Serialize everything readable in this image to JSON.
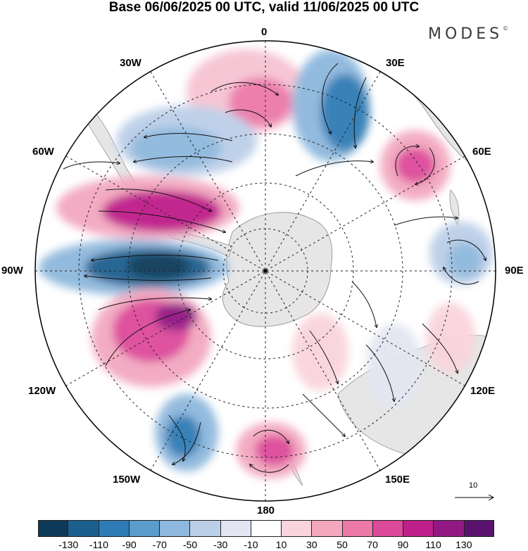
{
  "title": "Base 06/06/2025 00 UTC, valid 11/06/2025 00 UTC",
  "brand": "MODES",
  "brand_mark": "©",
  "longitude_labels": {
    "lon_0": "0",
    "lon_30e": "30E",
    "lon_60e": "60E",
    "lon_90e": "90E",
    "lon_120e": "120E",
    "lon_150e": "150E",
    "lon_180": "180",
    "lon_150w": "150W",
    "lon_120w": "120W",
    "lon_90w": "90W",
    "lon_60w": "60W",
    "lon_30w": "30W"
  },
  "reference_vector": {
    "label": "10"
  },
  "colorbar": {
    "colors": [
      "#0d3a58",
      "#1a5f8e",
      "#2f7bb5",
      "#5b9ccd",
      "#8eb8dd",
      "#bccfe8",
      "#e3e6f2",
      "#ffffff",
      "#f9d4dc",
      "#f3a8c0",
      "#ec79a8",
      "#dd4a9a",
      "#bf1f8b",
      "#921983",
      "#5a126f"
    ],
    "ticks": [
      "-130",
      "-110",
      "-90",
      "-70",
      "-50",
      "-30",
      "-10",
      "10",
      "30",
      "50",
      "70",
      "90",
      "110",
      "130"
    ]
  },
  "map": {
    "projection": "south polar stereographic",
    "field": "geopotential height anomaly with wind streamlines",
    "land_color": "#e5e5e5"
  }
}
